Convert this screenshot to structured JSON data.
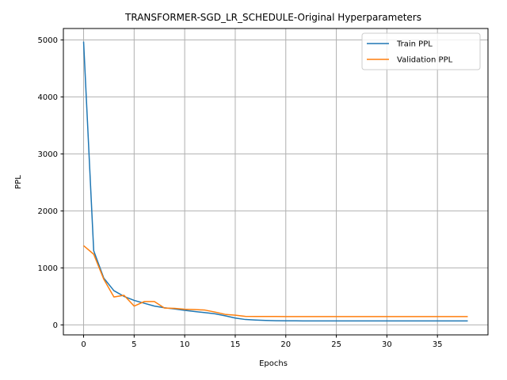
{
  "chart_data": {
    "type": "line",
    "title": "TRANSFORMER-SGD_LR_SCHEDULE-Original Hyperparameters",
    "xlabel": "Epochs",
    "ylabel": "PPL",
    "xlim": [
      -2,
      40
    ],
    "ylim": [
      -175,
      5200
    ],
    "xticks": [
      0,
      5,
      10,
      15,
      20,
      25,
      30,
      35
    ],
    "yticks": [
      0,
      1000,
      2000,
      3000,
      4000,
      5000
    ],
    "grid": true,
    "legend": "top-right",
    "x": [
      0,
      1,
      2,
      3,
      4,
      5,
      6,
      7,
      8,
      9,
      10,
      11,
      12,
      13,
      14,
      15,
      16,
      17,
      18,
      19,
      20,
      21,
      22,
      23,
      24,
      25,
      26,
      27,
      28,
      29,
      30,
      31,
      32,
      33,
      34,
      35,
      36,
      37,
      38
    ],
    "series": [
      {
        "name": "Train PPL",
        "color": "#1f77b4",
        "values": [
          4970,
          1300,
          820,
          600,
          500,
          430,
          380,
          330,
          300,
          280,
          255,
          235,
          215,
          195,
          160,
          120,
          95,
          85,
          78,
          74,
          72,
          71,
          70,
          70,
          70,
          70,
          70,
          70,
          70,
          70,
          70,
          70,
          70,
          70,
          70,
          70,
          70,
          70,
          70
        ]
      },
      {
        "name": "Validation PPL",
        "color": "#ff7f0e",
        "values": [
          1390,
          1240,
          800,
          490,
          520,
          330,
          410,
          410,
          295,
          290,
          275,
          270,
          260,
          225,
          185,
          170,
          150,
          148,
          148,
          148,
          147,
          146,
          146,
          146,
          146,
          146,
          146,
          146,
          146,
          146,
          146,
          146,
          146,
          146,
          146,
          146,
          146,
          146,
          146
        ]
      }
    ]
  }
}
